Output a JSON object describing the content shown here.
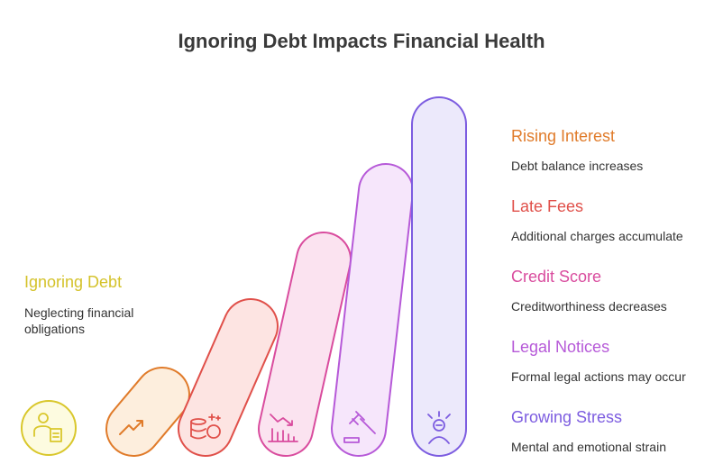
{
  "title": "Ignoring Debt Impacts Financial Health",
  "steps": [
    {
      "label": "Ignoring Debt",
      "description": "Neglecting financial obligations"
    },
    {
      "label": "Rising Interest",
      "description": "Debt balance increases"
    },
    {
      "label": "Late Fees",
      "description": "Additional charges accumulate"
    },
    {
      "label": "Credit Score",
      "description": "Creditworthiness decreases"
    },
    {
      "label": "Legal Notices",
      "description": "Formal legal actions may occur"
    },
    {
      "label": "Growing Stress",
      "description": "Mental and emotional strain"
    }
  ]
}
